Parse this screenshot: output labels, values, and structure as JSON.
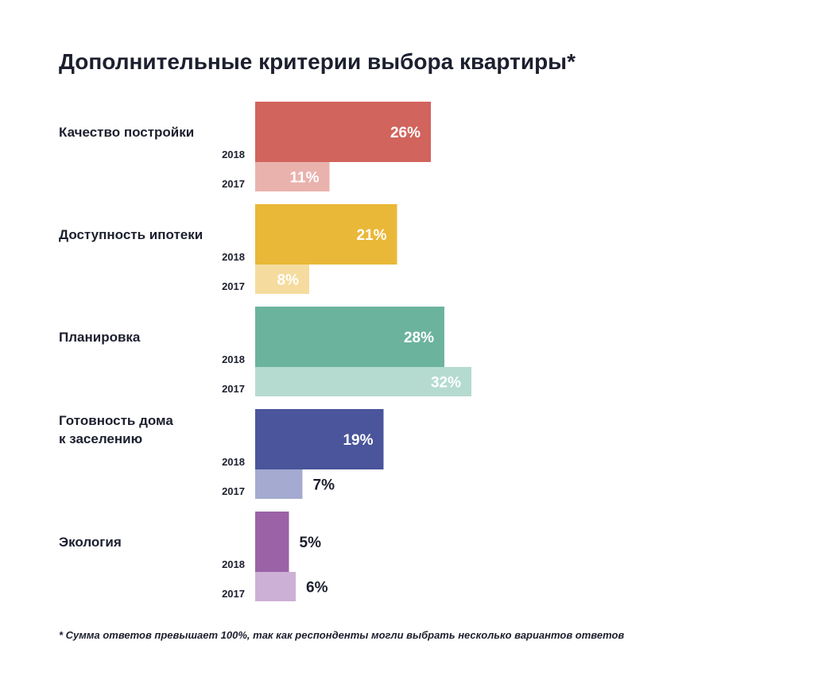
{
  "chart_data": {
    "type": "bar",
    "orientation": "horizontal",
    "title": "Дополнительные критерии выбора квартиры*",
    "footnote": "* Сумма ответов превышает 100%, так как респонденты могли выбрать несколько вариантов ответов",
    "series_names": [
      "2018",
      "2017"
    ],
    "unit": "%",
    "grid": false,
    "categories": [
      {
        "label_lines": [
          "Качество постройки"
        ],
        "values": [
          26,
          11
        ],
        "value_labels": [
          "26%",
          "11%"
        ],
        "colors": [
          "#d1645c",
          "#eab2ad"
        ]
      },
      {
        "label_lines": [
          "Доступность ипотеки"
        ],
        "values": [
          21,
          8
        ],
        "value_labels": [
          "21%",
          "8%"
        ],
        "colors": [
          "#eab838",
          "#f5dc9e"
        ]
      },
      {
        "label_lines": [
          "Планировка"
        ],
        "values": [
          28,
          32
        ],
        "value_labels": [
          "28%",
          "32%"
        ],
        "colors": [
          "#6bb39d",
          "#b5dbd0"
        ]
      },
      {
        "label_lines": [
          "Готовность дома",
          "к заселению"
        ],
        "values": [
          19,
          7
        ],
        "value_labels": [
          "19%",
          "7%"
        ],
        "colors": [
          "#4a559b",
          "#a4aad0"
        ]
      },
      {
        "label_lines": [
          "Экология"
        ],
        "values": [
          5,
          6
        ],
        "value_labels": [
          "5%",
          "6%"
        ],
        "colors": [
          "#9b62a6",
          "#cdb0d5"
        ]
      }
    ]
  }
}
